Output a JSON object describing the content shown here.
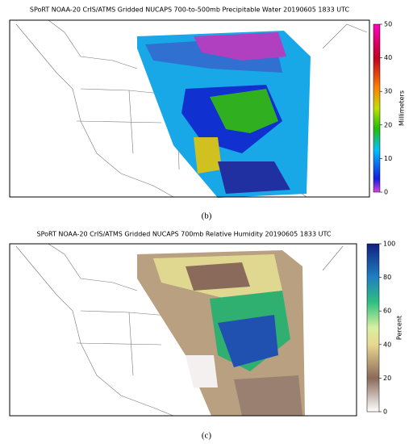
{
  "panels": [
    {
      "title": "SPoRT NOAA-20 CrIS/ATMS Gridded NUCAPS 700-to-500mb Precipitable Water 20190605 1833 UTC",
      "colorbar": {
        "label": "Millimeters",
        "lim": [
          0,
          50
        ],
        "ticks": [
          0,
          10,
          20,
          30,
          40,
          50
        ]
      },
      "caption": "(b)"
    },
    {
      "title": "SPoRT NOAA-20 CrIS/ATMS Gridded NUCAPS 700mb Relative Humidity 20190605 1833 UTC",
      "colorbar": {
        "label": "Percent",
        "lim": [
          0,
          100
        ],
        "ticks": [
          0,
          20,
          40,
          60,
          80,
          100
        ]
      },
      "caption": "(c)"
    }
  ]
}
